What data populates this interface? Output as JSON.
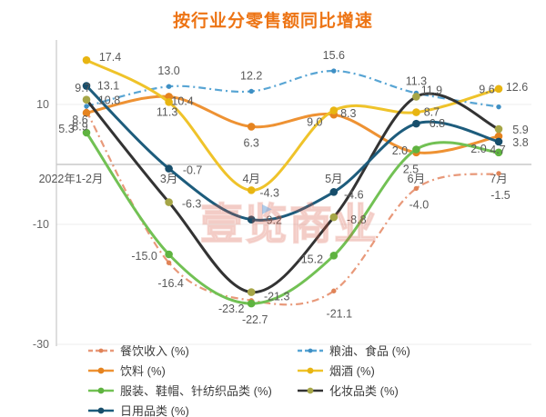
{
  "title": "按行业分零售额同比增速",
  "title_color": "#ED7414",
  "watermark": {
    "text": "壹览商业",
    "play_icon": "▶"
  },
  "axis": {
    "yticks": [
      "10",
      "-10",
      "-30"
    ],
    "tick_color": "#666666"
  },
  "chart_data": {
    "type": "line",
    "title": "按行业分零售额同比增速",
    "categories": [
      "2022年1-2月",
      "3月",
      "4月",
      "5月",
      "6月",
      "7月"
    ],
    "ylim": [
      -30,
      20
    ],
    "grid": true,
    "legend_position": "bottom",
    "series": [
      {
        "name": "餐饮收入 (%)",
        "key": "catering-revenue",
        "color": "#E8997A",
        "marker_color": "#E08357",
        "dashed": true,
        "values": [
          8.9,
          -16.4,
          -22.7,
          -21.1,
          -4.0,
          -1.5
        ],
        "labels": [
          "8.9",
          "-16.4",
          "-22.7",
          "-21.1",
          "-4.0",
          "-1.5"
        ],
        "label_offsets": [
          [
            -7,
            17
          ],
          [
            2,
            23
          ],
          [
            4,
            21
          ],
          [
            6,
            25
          ],
          [
            3,
            18
          ],
          [
            2,
            24
          ]
        ]
      },
      {
        "name": "粮油、食品 (%)",
        "key": "grain-oil-food",
        "color": "#58A5D4",
        "marker_color": "#3E8FC4",
        "dashed": true,
        "values": [
          9.7,
          13.0,
          12.2,
          15.6,
          11.9,
          9.6
        ],
        "labels": [
          "9.7",
          "13.0",
          "12.2",
          "15.6",
          "11.9",
          "9.6"
        ],
        "label_offsets": [
          [
            -4,
            -20
          ],
          [
            0,
            -17
          ],
          [
            0,
            -17
          ],
          [
            0,
            -17
          ],
          [
            17,
            -3
          ],
          [
            -13,
            -19
          ]
        ]
      },
      {
        "name": "饮料 (%)",
        "key": "beverages",
        "color": "#EE9233",
        "marker_color": "#E5831F",
        "dashed": false,
        "values": [
          8.6,
          11.3,
          6.3,
          8.3,
          2.0,
          4.7
        ],
        "labels": [
          "8.6",
          "11.3",
          "6.3",
          "8.3",
          "2.0",
          "4.7"
        ],
        "label_offsets": [
          [
            -7,
            8
          ],
          [
            -2,
            17
          ],
          [
            0,
            18
          ],
          [
            16,
            -1
          ],
          [
            -18,
            -2
          ],
          [
            -1,
            15
          ]
        ]
      },
      {
        "name": "烟酒 (%)",
        "key": "tobacco-alcohol",
        "color": "#EFC32A",
        "marker_color": "#E8B512",
        "dashed": false,
        "values": [
          17.4,
          10.4,
          -4.3,
          9.0,
          8.7,
          12.6
        ],
        "labels": [
          "17.4",
          "10.4",
          "-4.3",
          "9.0",
          "8.7",
          "12.6"
        ],
        "label_offsets": [
          [
            26,
            -3
          ],
          [
            15,
            -1
          ],
          [
            20,
            3
          ],
          [
            -21,
            13
          ],
          [
            17,
            0
          ],
          [
            20,
            -2
          ]
        ]
      },
      {
        "name": "服装、鞋帽、针纺织品类 (%)",
        "key": "clothing-shoes-textiles",
        "color": "#72C154",
        "marker_color": "#5FB340",
        "dashed": false,
        "values": [
          5.3,
          -15.0,
          -23.2,
          -15.2,
          2.5,
          2.0
        ],
        "labels": [
          "5.3",
          "-15.0",
          "-23.2",
          "-15.2",
          "2.5",
          "2.0"
        ],
        "label_offsets": [
          [
            -22,
            -4
          ],
          [
            -27,
            2
          ],
          [
            -22,
            6
          ],
          [
            -26,
            4
          ],
          [
            -6,
            22
          ],
          [
            -22,
            -4
          ]
        ]
      },
      {
        "name": "化妆品类 (%)",
        "key": "cosmetics",
        "color": "#333333",
        "marker_color": "#A6A647",
        "dashed": false,
        "values": [
          10.8,
          -6.3,
          -21.3,
          -8.8,
          11.3,
          5.9
        ],
        "labels": [
          "10.8",
          "-6.3",
          "-21.3",
          "-8.8",
          "11.3",
          "5.9"
        ],
        "label_offsets": [
          [
            25,
            1
          ],
          [
            25,
            2
          ],
          [
            28,
            5
          ],
          [
            25,
            3
          ],
          [
            0,
            -17
          ],
          [
            24,
            1
          ]
        ]
      },
      {
        "name": "日用品类 (%)",
        "key": "daily-necessities",
        "color": "#1D5C7C",
        "marker_color": "#174E6B",
        "dashed": false,
        "values": [
          13.1,
          -0.7,
          -9.2,
          -4.6,
          6.8,
          3.8
        ],
        "labels": [
          "13.1",
          "-0.7",
          "-9.2",
          "-4.6",
          "6.8",
          "3.8"
        ],
        "label_offsets": [
          [
            24,
            0
          ],
          [
            26,
            2
          ],
          [
            23,
            1
          ],
          [
            22,
            3
          ],
          [
            23,
            0
          ],
          [
            24,
            1
          ]
        ]
      }
    ]
  },
  "legend": {
    "items": [
      {
        "label": "餐饮收入 (%)",
        "series": 0
      },
      {
        "label": "粮油、食品 (%)",
        "series": 1
      },
      {
        "label": "饮料 (%)",
        "series": 2
      },
      {
        "label": "烟酒 (%)",
        "series": 3
      },
      {
        "label": "服装、鞋帽、针纺织品类 (%)",
        "series": 4
      },
      {
        "label": "化妆品类 (%)",
        "series": 5
      },
      {
        "label": "日用品类 (%)",
        "series": 6
      }
    ]
  }
}
